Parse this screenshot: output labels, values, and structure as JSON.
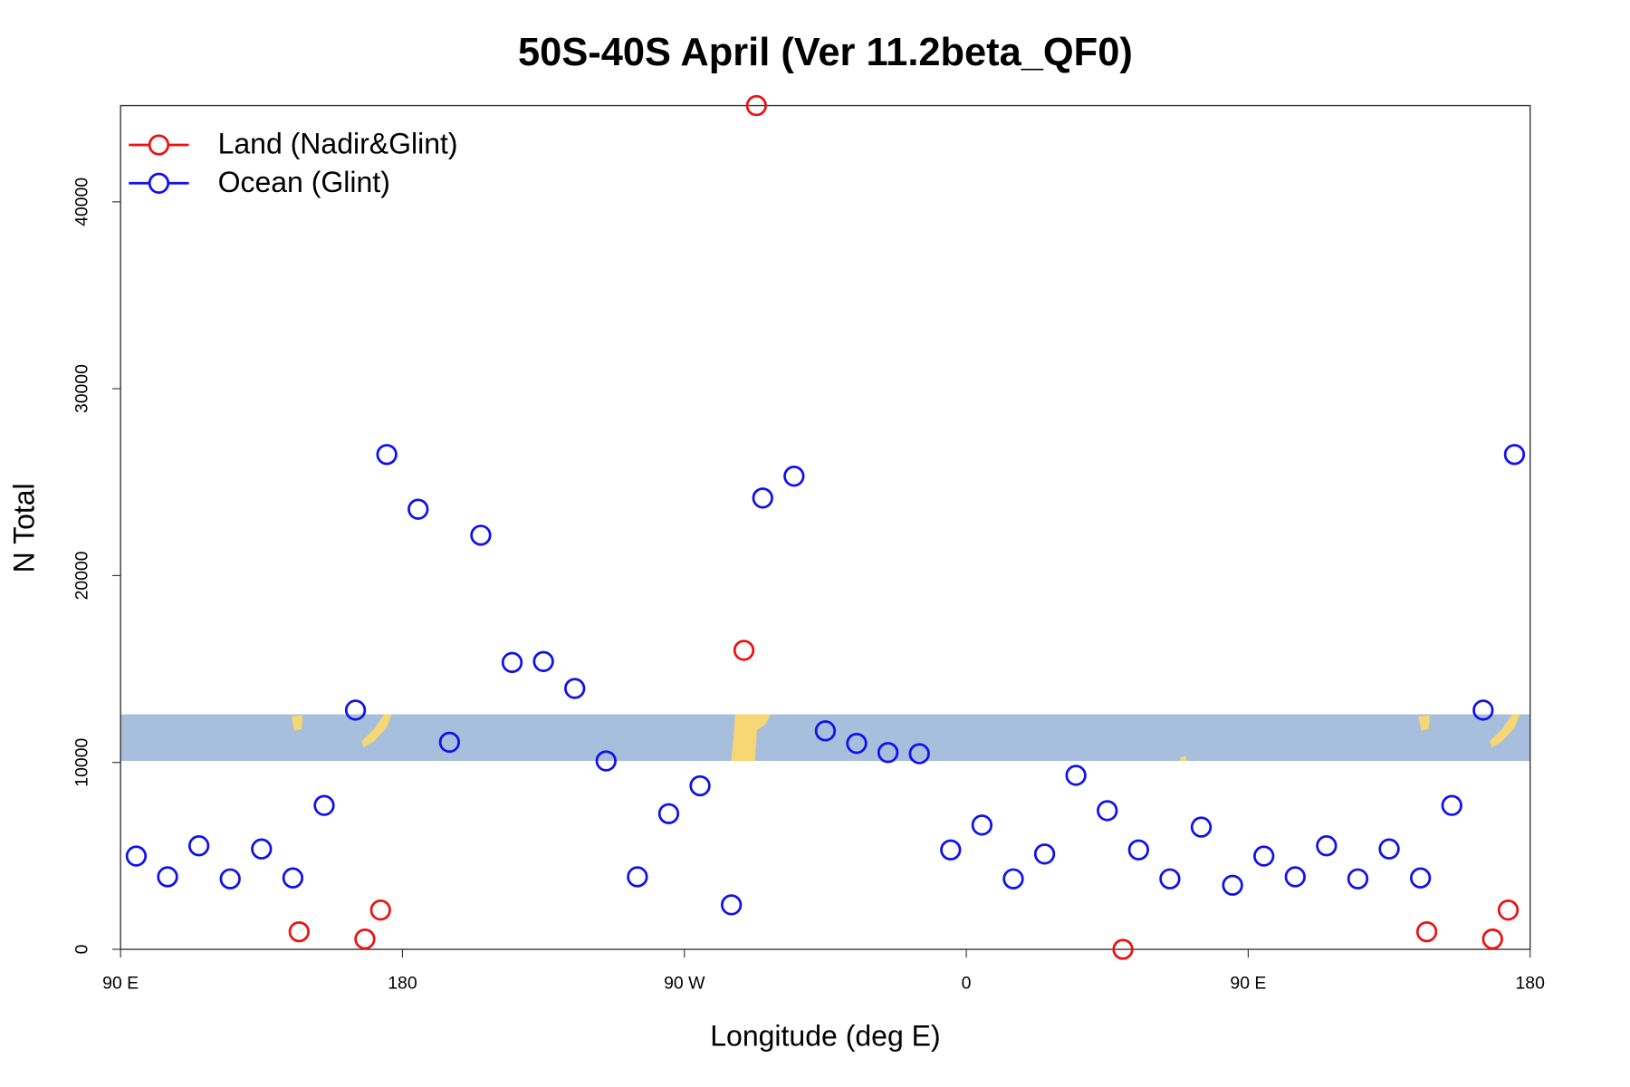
{
  "chart_data": {
    "type": "scatter",
    "title": "50S-40S April (Ver 11.2beta_QF0)",
    "x_label": "Longitude (deg E)",
    "y_label": "N Total",
    "xlim": [
      90,
      540
    ],
    "xticks": [
      {
        "value": 90,
        "label": "90 E"
      },
      180,
      {
        "value": 270,
        "label": "90 W"
      },
      {
        "value": 360,
        "label": "0"
      },
      {
        "value": 450,
        "label": "90 E"
      },
      {
        "value": 540,
        "label": "180"
      }
    ],
    "ylim": [
      0,
      45150
    ],
    "yticks": [
      0,
      10000,
      20000,
      30000,
      40000
    ],
    "legend": "top-left",
    "series": [
      {
        "name": "Land (Nadir&Glint)",
        "color": "#ee1111",
        "x": [
          147,
          168,
          173,
          289,
          293,
          410,
          507,
          528,
          533
        ],
        "values": [
          940,
          550,
          2100,
          16000,
          45150,
          0,
          940,
          550,
          2100
        ]
      },
      {
        "name": "Ocean (Glint)",
        "color": "#1010ee",
        "x": [
          95,
          105,
          115,
          125,
          135,
          145,
          155,
          165,
          175,
          185,
          195,
          205,
          215,
          225,
          235,
          245,
          255,
          265,
          275,
          285,
          295,
          305,
          315,
          325,
          335,
          345,
          355,
          365,
          375,
          385,
          395,
          405,
          415,
          425,
          435,
          445,
          455,
          465,
          475,
          485,
          495,
          505,
          515,
          525,
          535
        ],
        "values": [
          4990,
          3880,
          5540,
          3770,
          5370,
          3820,
          7700,
          12800,
          26480,
          23550,
          11080,
          22160,
          15350,
          15400,
          13960,
          10080,
          3880,
          7260,
          8750,
          2380,
          24150,
          25320,
          11690,
          11020,
          10530,
          10470,
          5320,
          6650,
          3770,
          5100,
          9310,
          7420,
          5320,
          3770,
          6540,
          3430,
          4990,
          3880,
          5540,
          3770,
          5370,
          3820,
          7700,
          12800,
          26480
        ]
      }
    ]
  }
}
